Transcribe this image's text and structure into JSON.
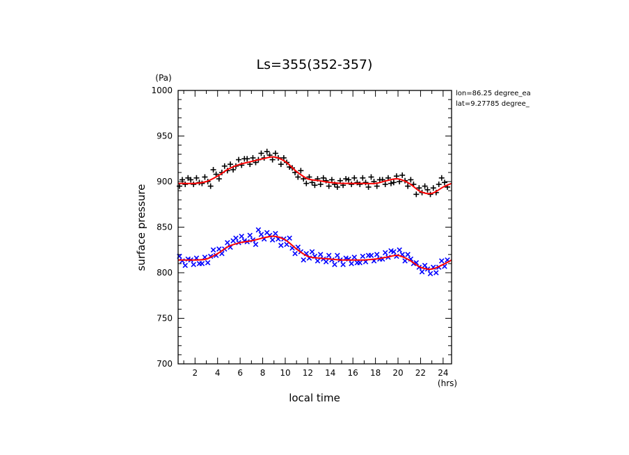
{
  "chart_data": {
    "type": "scatter",
    "title": "Ls=355(352-357)",
    "xlabel": "local time",
    "ylabel": "surface pressure",
    "x_unit": "(hrs)",
    "y_unit": "(Pa)",
    "annotations": [
      "lon=86.25 degree_ea",
      "lat=9.27785 degree_"
    ],
    "xlim": [
      0.5,
      24.75
    ],
    "ylim": [
      700,
      1000
    ],
    "x_ticks": [
      "2",
      "4",
      "6",
      "8",
      "10",
      "12",
      "14",
      "16",
      "18",
      "20",
      "22",
      "24"
    ],
    "y_ticks": [
      "700",
      "750",
      "800",
      "850",
      "900",
      "950",
      "1000"
    ],
    "grid": false,
    "colors": {
      "upper_markers": "#000000",
      "lower_markers": "#0000ff",
      "fit_line": "#ff0000"
    },
    "series": [
      {
        "marker": "+",
        "x": [
          1,
          2,
          3,
          4,
          5,
          6,
          7,
          8,
          9,
          10,
          11,
          12,
          13,
          14,
          15,
          16,
          17,
          18,
          19,
          20,
          21,
          22,
          23,
          24
        ],
        "y": [
          899,
          899,
          900,
          908,
          917,
          922,
          923,
          928,
          926,
          921,
          910,
          903,
          901,
          899,
          898,
          899,
          899,
          900,
          902,
          904,
          899,
          890,
          888,
          899
        ]
      },
      {
        "marker": "x",
        "x": [
          1,
          2,
          3,
          4,
          5,
          6,
          7,
          8,
          9,
          10,
          11,
          12,
          13,
          14,
          15,
          16,
          17,
          18,
          19,
          20,
          21,
          22,
          23,
          24
        ],
        "y": [
          813,
          814,
          815,
          823,
          830,
          835,
          836,
          842,
          841,
          835,
          825,
          818,
          815,
          814,
          814,
          815,
          816,
          817,
          819,
          820,
          815,
          806,
          804,
          811
        ]
      },
      {
        "marker": "line",
        "x": [
          0.5,
          1,
          2,
          3,
          4,
          5,
          6,
          7,
          8,
          9,
          10,
          11,
          12,
          13,
          14,
          15,
          16,
          17,
          18,
          19,
          20,
          21,
          22,
          23,
          24,
          24.75
        ],
        "y": [
          898,
          898,
          898,
          900,
          906,
          914,
          919,
          922,
          925,
          927,
          922,
          911,
          903,
          901,
          899,
          898,
          898,
          898,
          898,
          901,
          903,
          898,
          889,
          887,
          894,
          898
        ]
      },
      {
        "marker": "line",
        "x": [
          0.5,
          1,
          2,
          3,
          4,
          5,
          6,
          7,
          8,
          9,
          10,
          11,
          12,
          13,
          14,
          15,
          16,
          17,
          18,
          19,
          20,
          21,
          22,
          23,
          24,
          24.75
        ],
        "y": [
          814,
          814,
          814,
          815,
          821,
          829,
          833,
          835,
          838,
          840,
          836,
          826,
          818,
          816,
          815,
          814,
          814,
          814,
          815,
          817,
          819,
          814,
          806,
          804,
          809,
          814
        ]
      }
    ]
  }
}
